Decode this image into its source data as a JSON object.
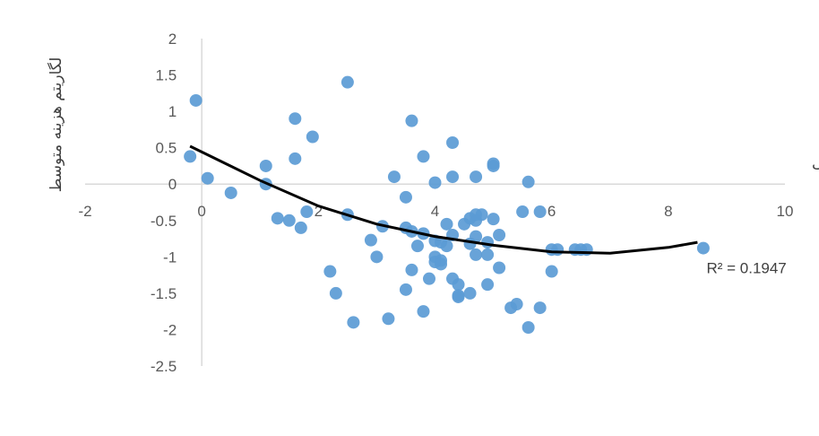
{
  "chart_data": {
    "type": "scatter",
    "title": "",
    "xlabel": "لگاریتم تولید تراکمی",
    "ylabel": "لگاریتم هزینه متوسط",
    "xlim": [
      -2,
      10
    ],
    "ylim": [
      -2.5,
      2
    ],
    "x_ticks": [
      "-2",
      "0",
      "2",
      "4",
      "6",
      "8",
      "10"
    ],
    "y_ticks": [
      "2",
      "1.5",
      "1",
      "0.5",
      "0",
      "-0.5",
      "-1",
      "-1.5",
      "-2",
      "-2.5"
    ],
    "grid": false,
    "legend": "none",
    "trendline": {
      "type": "polynomial-2",
      "label": "R² = 0.1947",
      "x": [
        -0.2,
        1,
        2,
        3,
        4,
        5,
        6,
        7,
        8,
        8.5
      ],
      "y": [
        0.52,
        0.05,
        -0.3,
        -0.55,
        -0.72,
        -0.84,
        -0.93,
        -0.95,
        -0.87,
        -0.8
      ]
    },
    "series": [
      {
        "marker_color": "#5b9bd5",
        "x": [
          -0.2,
          -0.1,
          0.1,
          0.5,
          1.1,
          1.1,
          1.3,
          1.5,
          1.6,
          1.6,
          1.7,
          1.8,
          1.9,
          2.2,
          2.3,
          2.5,
          2.5,
          2.6,
          2.9,
          3.0,
          3.1,
          3.2,
          3.3,
          3.5,
          3.5,
          3.5,
          3.6,
          3.6,
          3.6,
          3.7,
          3.8,
          3.8,
          3.8,
          3.9,
          4.0,
          4.0,
          4.0,
          4.0,
          4.1,
          4.1,
          4.1,
          4.2,
          4.2,
          4.3,
          4.3,
          4.3,
          4.3,
          4.4,
          4.4,
          4.4,
          4.5,
          4.6,
          4.6,
          4.6,
          4.7,
          4.7,
          4.7,
          4.7,
          4.7,
          4.8,
          4.9,
          4.9,
          4.9,
          5.0,
          5.0,
          5.0,
          5.1,
          5.1,
          5.3,
          5.4,
          5.5,
          5.6,
          5.6,
          5.8,
          5.8,
          6.0,
          6.0,
          6.1,
          6.4,
          6.5,
          6.6,
          8.6
        ],
        "y": [
          0.38,
          1.15,
          0.08,
          -0.12,
          0.25,
          0.0,
          -0.47,
          -0.5,
          0.9,
          0.35,
          -0.6,
          -0.38,
          0.65,
          -1.2,
          -1.5,
          1.4,
          -0.42,
          -1.9,
          -0.77,
          -1.0,
          -0.58,
          -1.85,
          0.1,
          -0.18,
          -0.6,
          -1.45,
          0.87,
          -1.18,
          -0.65,
          -0.85,
          0.38,
          -0.68,
          -1.75,
          -1.3,
          -0.78,
          -1.0,
          -1.07,
          0.02,
          -0.8,
          -1.05,
          -1.1,
          -0.55,
          -0.85,
          0.1,
          0.57,
          -0.7,
          -1.3,
          -1.38,
          -1.55,
          -1.53,
          -0.55,
          -0.47,
          -0.82,
          -1.5,
          -0.72,
          -0.5,
          -0.42,
          -0.97,
          0.1,
          -0.42,
          -0.97,
          -1.38,
          -0.8,
          0.25,
          0.28,
          -0.48,
          -0.7,
          -1.15,
          -1.7,
          -1.65,
          -0.38,
          0.03,
          -1.97,
          -0.38,
          -1.7,
          -1.2,
          -0.9,
          -0.9,
          -0.9,
          -0.9,
          -0.9,
          -0.88
        ]
      }
    ]
  }
}
